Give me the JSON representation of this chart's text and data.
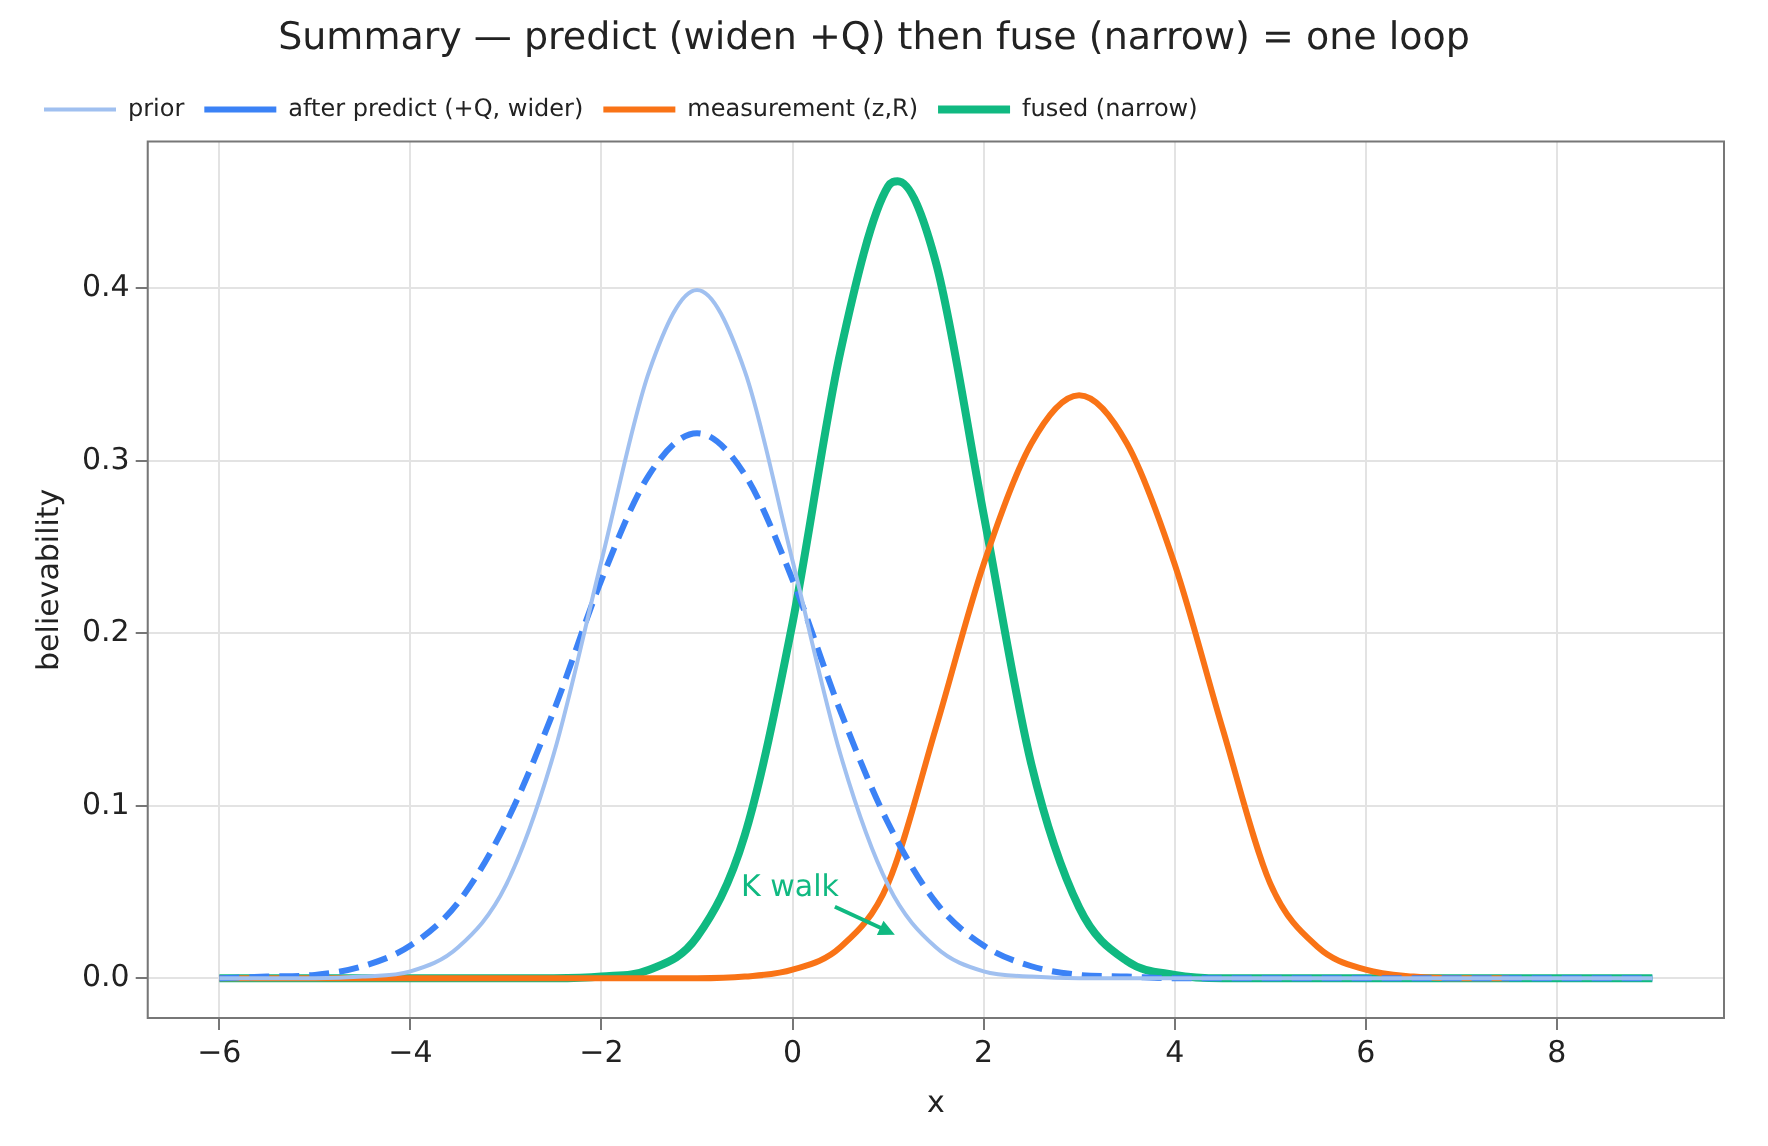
{
  "chart_data": {
    "type": "line",
    "title": "Summary — predict (widen +Q) then fuse (narrow) = one loop",
    "xlabel": "x",
    "ylabel": "believability",
    "xlim": [
      -6.75,
      9.75
    ],
    "xticks": [
      -6,
      -4,
      -2,
      0,
      2,
      4,
      6,
      8
    ],
    "ylim": [
      -0.023,
      0.485
    ],
    "yticks": [
      {
        "value": 0,
        "label": "0.0"
      },
      0.1,
      0.2,
      0.3,
      0.4
    ],
    "grid": true,
    "legend": "top left",
    "marker": "none",
    "annotations": [
      "K walk"
    ],
    "series": [
      {
        "name": "prior",
        "color": "#a0c0f0",
        "line_style": "solid",
        "x": [
          -6,
          -5.5,
          -5,
          -4.5,
          -4,
          -3.5,
          -3,
          -2.5,
          -2,
          -1.5,
          -1,
          -0.5,
          0,
          0.5,
          1,
          1.5,
          2,
          2.5,
          3,
          3.5,
          4,
          5,
          6,
          7,
          8,
          9
        ],
        "values": [
          0,
          0,
          0,
          0.001,
          0.004,
          0.018,
          0.054,
          0.13,
          0.242,
          0.352,
          0.399,
          0.352,
          0.242,
          0.13,
          0.054,
          0.018,
          0.004,
          0.001,
          0,
          0,
          0,
          0,
          0,
          0,
          0,
          0
        ]
      },
      {
        "name": "after predict (+Q, wider)",
        "color": "#3b82f6",
        "line_style": "dashed",
        "x": [
          -6,
          -5.5,
          -5,
          -4.5,
          -4,
          -3.5,
          -3,
          -2.5,
          -2,
          -1.5,
          -1,
          -0.5,
          0,
          0.5,
          1,
          1.5,
          2,
          2.5,
          3,
          3.5,
          4,
          5,
          6,
          7,
          8,
          9
        ],
        "values": [
          0,
          0.001,
          0.002,
          0.007,
          0.019,
          0.044,
          0.09,
          0.155,
          0.231,
          0.292,
          0.316,
          0.292,
          0.231,
          0.155,
          0.09,
          0.044,
          0.019,
          0.007,
          0.002,
          0.001,
          0,
          0,
          0,
          0,
          0,
          0
        ]
      },
      {
        "name": "measurement (z,R)",
        "color": "#f97316",
        "line_style": "solid",
        "x": [
          -6,
          -2,
          -1,
          -0.5,
          0,
          0.5,
          1,
          1.5,
          2,
          2.5,
          3,
          3.5,
          4,
          4.5,
          5,
          5.5,
          6,
          6.5,
          7,
          7.5
        ],
        "values": [
          0,
          0,
          0,
          0.001,
          0.005,
          0.018,
          0.055,
          0.145,
          0.24,
          0.31,
          0.338,
          0.31,
          0.24,
          0.145,
          0.055,
          0.018,
          0.005,
          0.001,
          0,
          0
        ]
      },
      {
        "name": "fused (narrow)",
        "color": "#10b981",
        "line_style": "solid",
        "x": [
          -6,
          -3,
          -2.5,
          -2,
          -1.5,
          -1,
          -0.5,
          0,
          0.5,
          1,
          1.1,
          1.5,
          2,
          2.5,
          3,
          3.5,
          4,
          4.5,
          5,
          6,
          7,
          8,
          9
        ],
        "values": [
          0,
          0,
          0,
          0.001,
          0.005,
          0.024,
          0.083,
          0.206,
          0.363,
          0.459,
          0.462,
          0.415,
          0.269,
          0.124,
          0.041,
          0.01,
          0.002,
          0,
          0,
          0,
          0,
          0,
          0
        ]
      }
    ]
  }
}
